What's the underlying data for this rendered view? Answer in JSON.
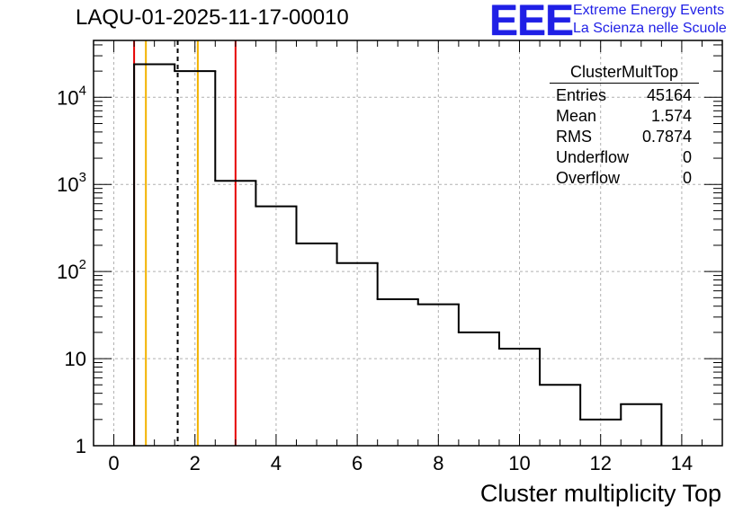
{
  "title": "LAQU-01-2025-11-17-00010",
  "logo": {
    "letters": "EEE",
    "line1": "Extreme Energy Events",
    "line2": "La Scienza nelle Scuole",
    "color": "#1f1fe6"
  },
  "stats_box": {
    "name": "ClusterMultTop",
    "rows": [
      {
        "label": "Entries",
        "value": "45164"
      },
      {
        "label": "Mean",
        "value": "1.574"
      },
      {
        "label": "RMS",
        "value": "0.7874"
      },
      {
        "label": "Underflow",
        "value": "0"
      },
      {
        "label": "Overflow",
        "value": "0"
      }
    ]
  },
  "chart_data": {
    "type": "histogram",
    "title": "LAQU-01-2025-11-17-00010",
    "xlabel": "Cluster multiplicity Top",
    "ylabel": "",
    "xlim": [
      -0.5,
      15
    ],
    "ylim": [
      1,
      45000
    ],
    "yscale": "log",
    "grid": true,
    "x_ticks": [
      0,
      2,
      4,
      6,
      8,
      10,
      12,
      14
    ],
    "x_tick_labels": [
      "0",
      "2",
      "4",
      "6",
      "8",
      "10",
      "12",
      "14"
    ],
    "y_ticks": [
      {
        "value": 1,
        "base": "1",
        "exp": ""
      },
      {
        "value": 10,
        "base": "10",
        "exp": ""
      },
      {
        "value": 100,
        "base": "10",
        "exp": "2"
      },
      {
        "value": 1000,
        "base": "10",
        "exp": "3"
      },
      {
        "value": 10000,
        "base": "10",
        "exp": "4"
      }
    ],
    "bin_edges": [
      0.5,
      1.5,
      2.5,
      3.5,
      4.5,
      5.5,
      6.5,
      7.5,
      8.5,
      9.5,
      10.5,
      11.5,
      12.5,
      13.5
    ],
    "counts": [
      24000,
      20000,
      1100,
      560,
      210,
      125,
      48,
      42,
      20,
      13,
      5,
      2,
      3
    ],
    "markers": [
      {
        "x": 0.5,
        "color": "#e60000",
        "style": "solid"
      },
      {
        "x": 0.79,
        "color": "#f2b200",
        "style": "solid"
      },
      {
        "x": 1.574,
        "color": "#000000",
        "style": "dashed"
      },
      {
        "x": 2.07,
        "color": "#f2b200",
        "style": "solid"
      },
      {
        "x": 3.0,
        "color": "#e60000",
        "style": "solid"
      }
    ],
    "line_color": "#000000"
  }
}
